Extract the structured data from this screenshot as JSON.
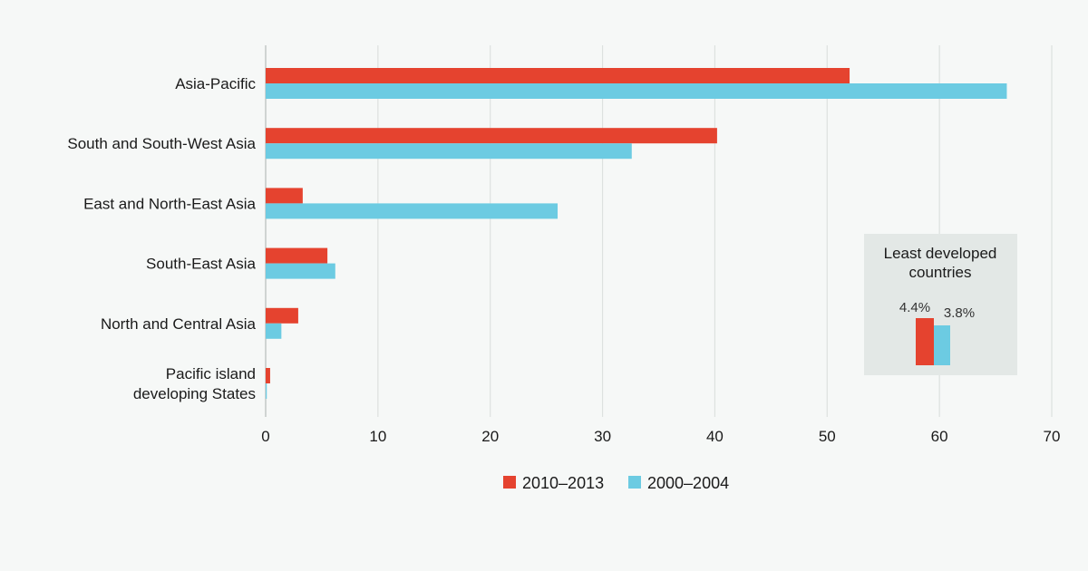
{
  "chart_data": {
    "type": "bar",
    "orientation": "horizontal",
    "categories": [
      [
        "Asia-Pacific"
      ],
      [
        "South and South-West Asia"
      ],
      [
        "East and North-East Asia"
      ],
      [
        "South-East Asia"
      ],
      [
        "North and Central Asia"
      ],
      [
        "Pacific island",
        "developing States"
      ]
    ],
    "series": [
      {
        "name": "2010–2013",
        "color": "#e5432f",
        "values": [
          52,
          40.2,
          3.3,
          5.5,
          2.9,
          0.4
        ]
      },
      {
        "name": "2000–2004",
        "color": "#6ccbe2",
        "values": [
          66,
          32.6,
          26,
          6.2,
          1.4,
          0.1
        ]
      }
    ],
    "xlim": [
      0,
      70
    ],
    "xticks": [
      0,
      10,
      20,
      30,
      40,
      50,
      60,
      70
    ],
    "grid": true,
    "grid_axis": "x",
    "legend": "bottom-center",
    "inset": {
      "title_lines": [
        "Least developed",
        "countries"
      ],
      "values": [
        "4.4%",
        "3.8%"
      ],
      "series_colors": [
        "#e5432f",
        "#6ccbe2"
      ]
    }
  }
}
